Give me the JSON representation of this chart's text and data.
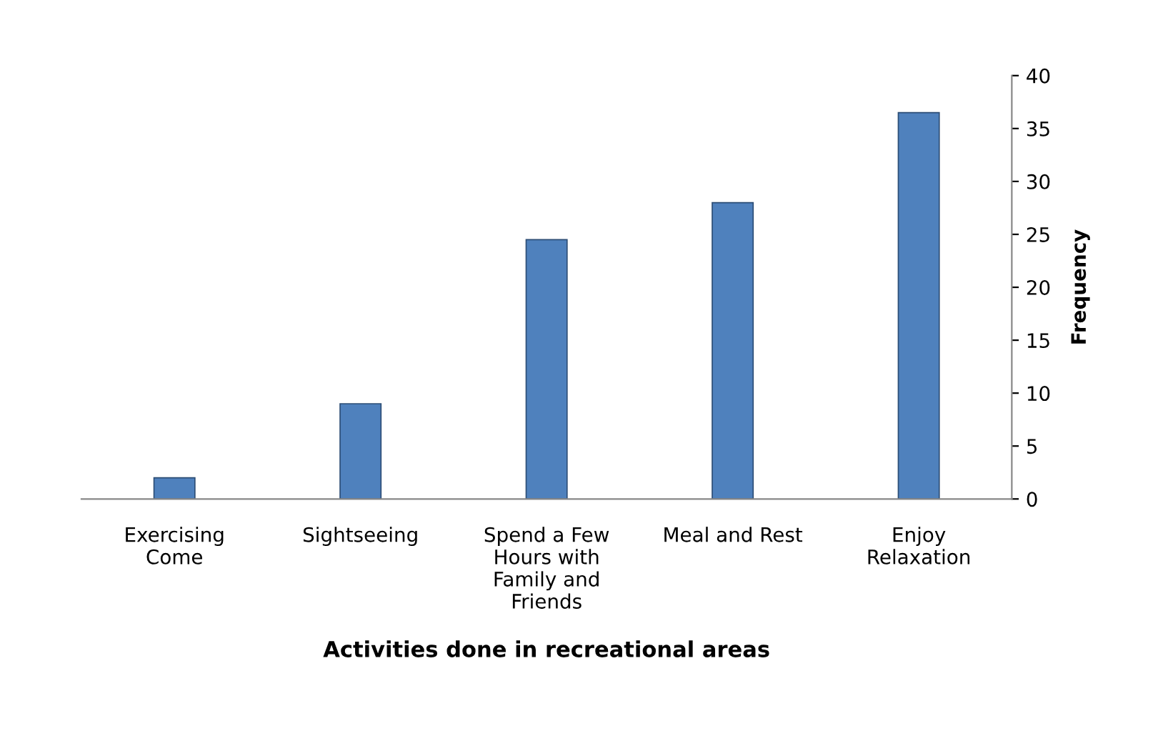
{
  "chart_data": {
    "type": "bar",
    "xlabel": "Activities done in recreational areas",
    "ylabel": "Frequency",
    "categories": [
      "Exercising\nCome",
      "Sightseeing",
      "Spend a Few\nHours with\nFamily and\nFriends",
      "Meal and Rest",
      "Enjoy\nRelaxation"
    ],
    "values": [
      2,
      9,
      24.5,
      28,
      36.5
    ],
    "color": "#4f81bd",
    "ylim": [
      0,
      40
    ],
    "yticks": [
      0,
      5,
      10,
      15,
      20,
      25,
      30,
      35,
      40
    ],
    "grid": false,
    "legend": false
  }
}
